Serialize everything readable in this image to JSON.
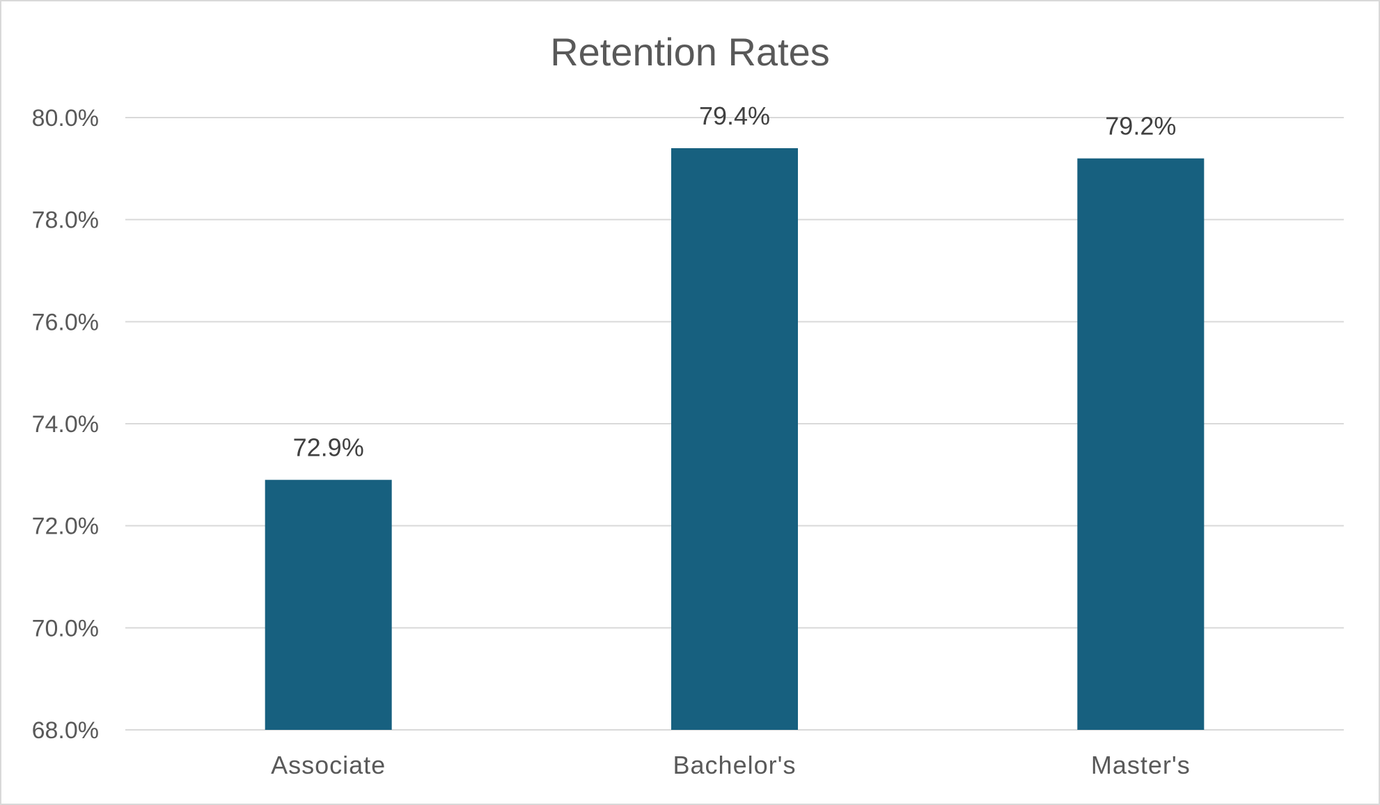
{
  "chart_data": {
    "type": "bar",
    "title": "Retention Rates",
    "categories": [
      "Associate",
      "Bachelor's",
      "Master's"
    ],
    "values": [
      72.9,
      79.4,
      79.2
    ],
    "data_labels": [
      "72.9%",
      "79.4%",
      "79.2%"
    ],
    "y_ticks": [
      "68.0%",
      "70.0%",
      "72.0%",
      "74.0%",
      "76.0%",
      "78.0%",
      "80.0%"
    ],
    "y_tick_values": [
      68,
      70,
      72,
      74,
      76,
      78,
      80
    ],
    "ylim": [
      68,
      80
    ],
    "xlabel": "",
    "ylabel": "",
    "grid": true,
    "legend": "none",
    "bar_color": "#17607f"
  }
}
